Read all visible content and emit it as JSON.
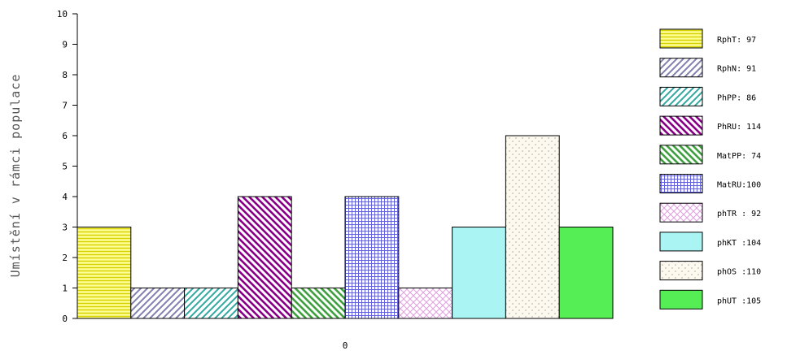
{
  "chart_data": {
    "type": "bar",
    "title": "",
    "xlabel": "",
    "ylabel": "Umístění v rámci populace",
    "ylim": [
      0,
      10
    ],
    "y_ticks": [
      "0",
      "1",
      "2",
      "3",
      "4",
      "5",
      "6",
      "7",
      "8",
      "9",
      "10"
    ],
    "categories": [
      "0"
    ],
    "grid": false,
    "legend_position": "right",
    "series": [
      {
        "name": "RphT",
        "legend_label": "RphT:  97",
        "value": 3,
        "fill": "#ffff99",
        "pattern": "hlines",
        "pattern_color": "#d6d200"
      },
      {
        "name": "RphN",
        "legend_label": "RphN:  91",
        "value": 1,
        "fill": "#ffffff",
        "pattern": "diag-up",
        "pattern_color": "#8080b0"
      },
      {
        "name": "PhPP",
        "legend_label": "PhPP:  86",
        "value": 1,
        "fill": "#ffffff",
        "pattern": "diag-up",
        "pattern_color": "#30a8a0"
      },
      {
        "name": "PhRU",
        "legend_label": "PhRU: 114",
        "value": 4,
        "fill": "#ffffff",
        "pattern": "diag-down",
        "pattern_color": "#880088"
      },
      {
        "name": "MatPP",
        "legend_label": "MatPP: 74",
        "value": 1,
        "fill": "#ffffff",
        "pattern": "diag-down",
        "pattern_color": "#40a040"
      },
      {
        "name": "MatRU",
        "legend_label": "MatRU:100",
        "value": 4,
        "fill": "#ffffff",
        "pattern": "grid",
        "pattern_color": "#6060e0"
      },
      {
        "name": "phTR",
        "legend_label": "phTR : 92",
        "value": 1,
        "fill": "#ffffff",
        "pattern": "crosshatch",
        "pattern_color": "#e0a0e0"
      },
      {
        "name": "phKT",
        "legend_label": "phKT :104",
        "value": 3,
        "fill": "#aaf4f4",
        "pattern": "none",
        "pattern_color": ""
      },
      {
        "name": "phOS",
        "legend_label": "phOS :110",
        "value": 6,
        "fill": "#fbf9f0",
        "pattern": "dots",
        "pattern_color": "#b0a890"
      },
      {
        "name": "phUT",
        "legend_label": "phUT :105",
        "value": 3,
        "fill": "#55ee55",
        "pattern": "none",
        "pattern_color": ""
      }
    ]
  }
}
